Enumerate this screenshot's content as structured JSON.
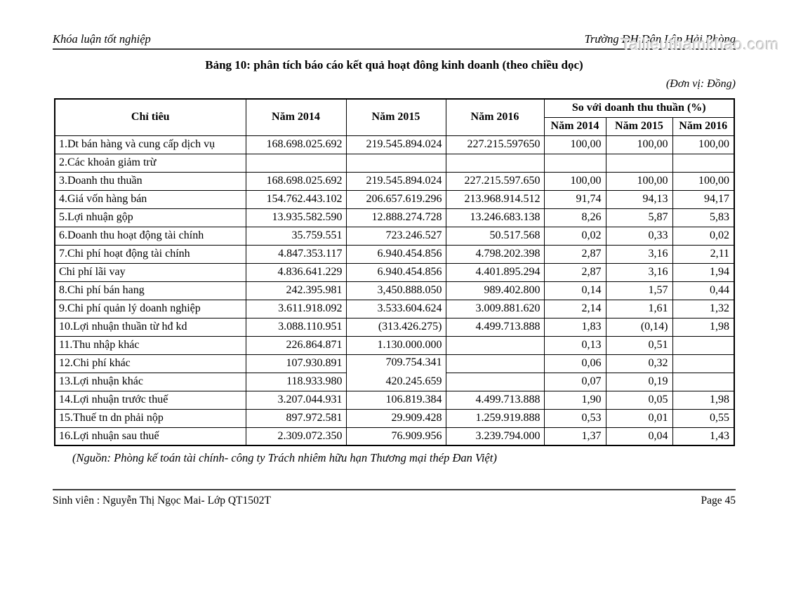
{
  "watermark": "Tailieuthamkhao.com",
  "running_head": {
    "left": "Khóa luận tốt nghiệp",
    "right": "Trường ĐH Dân Lập Hải Phòng"
  },
  "title": "Bảng 10: phân tích báo cáo kết quả hoạt đông kinh doanh (theo chiều dọc)",
  "unit_note": "(Đơn vị: Đồng)",
  "table": {
    "columns": [
      "Chỉ tiêu",
      "Năm 2014",
      "Năm 2015",
      "Năm 2016"
    ],
    "col_group_header": "So với doanh thu thuần (%)",
    "pct_columns": [
      "Năm 2014",
      "Năm 2015",
      "Năm 2016"
    ],
    "rows": [
      {
        "label": "1.Dt bán hàng và cung cấp dịch vụ",
        "y2014": "168.698.025.692",
        "y2015": "219.545.894.024",
        "y2016": "227.215.597650",
        "p2014": "100,00",
        "p2015": "100,00",
        "p2016": "100,00"
      },
      {
        "label": "2.Các khoản giảm trừ",
        "y2014": "",
        "y2015": "",
        "y2016": "",
        "p2014": "",
        "p2015": "",
        "p2016": ""
      },
      {
        "label": "3.Doanh thu thuần",
        "y2014": "168.698.025.692",
        "y2015": "219.545.894.024",
        "y2016": "227.215.597.650",
        "p2014": "100,00",
        "p2015": "100,00",
        "p2016": "100,00"
      },
      {
        "label": "4.Giá vốn hàng bán",
        "y2014": "154.762.443.102",
        "y2015": "206.657.619.296",
        "y2016": "213.968.914.512",
        "p2014": "91,74",
        "p2015": "94,13",
        "p2016": "94,17"
      },
      {
        "label": "5.Lợi nhuận gộp",
        "y2014": "13.935.582.590",
        "y2015": "12.888.274.728",
        "y2016": "13.246.683.138",
        "p2014": "8,26",
        "p2015": "5,87",
        "p2016": "5,83"
      },
      {
        "label": "6.Doanh thu hoạt động tài chính",
        "y2014": "35.759.551",
        "y2015": "723.246.527",
        "y2016": "50.517.568",
        "p2014": "0,02",
        "p2015": "0,33",
        "p2016": "0,02"
      },
      {
        "label": "7.Chi phí hoạt động tài chính",
        "y2014": "4.847.353.117",
        "y2015": "6.940.454.856",
        "y2016": "4.798.202.398",
        "p2014": "2,87",
        "p2015": "3,16",
        "p2016": "2,11"
      },
      {
        "label": "Chi phí lãi vay",
        "y2014": "4.836.641.229",
        "y2015": "6.940.454.856",
        "y2016": "4.401.895.294",
        "p2014": "2,87",
        "p2015": "3,16",
        "p2016": "1,94"
      },
      {
        "label": "8.Chi phí bán hang",
        "y2014": "242.395.981",
        "y2015": "3,450.888.050",
        "y2016": "989.402.800",
        "p2014": "0,14",
        "p2015": "1,57",
        "p2016": "0,44"
      },
      {
        "label": "9.Chi phí quản lý doanh nghiệp",
        "y2014": "3.611.918.092",
        "y2015": "3.533.604.624",
        "y2016": "3.009.881.620",
        "p2014": "2,14",
        "p2015": "1,61",
        "p2016": "1,32"
      },
      {
        "label": "10.Lợi nhuận thuần từ hđ kd",
        "y2014": "3.088.110.951",
        "y2015": "(313.426.275)",
        "y2016": "4.499.713.888",
        "p2014": "1,83",
        "p2015": "(0,14)",
        "p2016": "1,98"
      },
      {
        "label": "11.Thu nhập khác",
        "y2014": "226.864.871",
        "y2015": "1.130.000.000",
        "y2016": "",
        "p2014": "0,13",
        "p2015": "0,51",
        "p2016": ""
      },
      {
        "label": "12.Chi phí khác",
        "y2014": "107.930.891",
        "y2015": "709.754.341",
        "y2016": "",
        "p2014": "0,06",
        "p2015": "0,32",
        "p2016": ""
      },
      {
        "label": "13.Lợi nhuận khác",
        "y2014": "118.933.980",
        "y2015": "420.245.659",
        "y2016": "",
        "p2014": "0,07",
        "p2015": "0,19",
        "p2016": ""
      },
      {
        "label": "14.Lợi nhuận trước thuế",
        "y2014": "3.207.044.931",
        "y2015": "106.819.384",
        "y2016": "4.499.713.888",
        "p2014": "1,90",
        "p2015": "0,05",
        "p2016": "1,98"
      },
      {
        "label": "15.Thuế tn dn phải nộp",
        "y2014": "897.972.581",
        "y2015": "29.909.428",
        "y2016": "1.259.919.888",
        "p2014": "0,53",
        "p2015": "0,01",
        "p2016": "0,55"
      },
      {
        "label": "16.Lợi nhuận sau thuế",
        "y2014": "2.309.072.350",
        "y2015": "76.909.956",
        "y2016": "3.239.794.000",
        "p2014": "1,37",
        "p2015": "0,04",
        "p2016": "1,43"
      }
    ]
  },
  "source_note": "(Nguồn: Phòng kế toán tài chính- công ty Trách nhiêm hữu hạn Thương mại thép Đan Việt)",
  "footer": {
    "left": "Sinh viên : Nguyễn Thị Ngọc Mai- Lớp QT1502T",
    "right": "Page 45"
  }
}
